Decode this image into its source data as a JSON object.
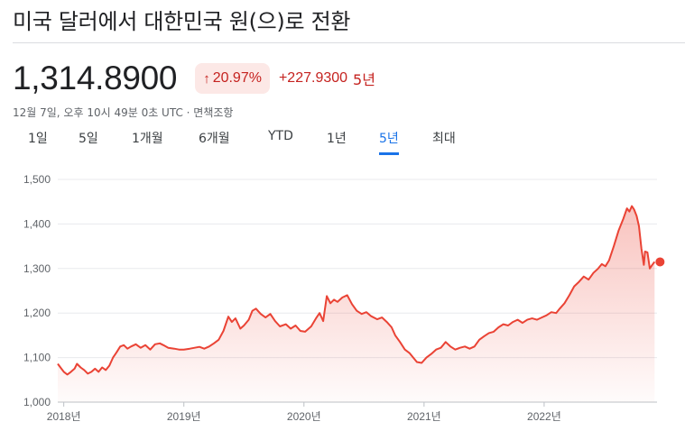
{
  "header": {
    "title": "미국 달러에서 대한민국 원(으)로 전환"
  },
  "quote": {
    "price": "1,314.8900",
    "percent_change": "20.97%",
    "arrow_glyph": "↑",
    "absolute_change": "+227.9300",
    "period_word": "5년",
    "timestamp": "12월 7일, 오후 10시 49분 0초 UTC · 면책조항",
    "change_color": "#c5221f",
    "badge_color": "#fce8e6"
  },
  "range_tabs": [
    {
      "label": "1일",
      "active": false
    },
    {
      "label": "5일",
      "active": false
    },
    {
      "label": "1개월",
      "active": false
    },
    {
      "label": "6개월",
      "active": false
    },
    {
      "label": "YTD",
      "active": false
    },
    {
      "label": "1년",
      "active": false
    },
    {
      "label": "5년",
      "active": true
    },
    {
      "label": "최대",
      "active": false
    }
  ],
  "chart_data": {
    "type": "area",
    "title": "",
    "xlabel": "",
    "ylabel": "",
    "ylim": [
      1000,
      1500
    ],
    "y_ticks": [
      1000,
      1100,
      1200,
      1300,
      1400,
      1500
    ],
    "y_tick_labels": [
      "1,000",
      "1,100",
      "1,200",
      "1,300",
      "1,400",
      "1,500"
    ],
    "xlim": [
      2017.95,
      2022.94
    ],
    "x_ticks": [
      2018,
      2019,
      2020,
      2021,
      2022
    ],
    "x_tick_labels": [
      "2018년",
      "2019년",
      "2020년",
      "2021년",
      "2022년"
    ],
    "line_color": "#ea4335",
    "grid": true,
    "series": [
      {
        "values": [
          [
            2017.95,
            1086
          ],
          [
            2017.98,
            1075
          ],
          [
            2018.0,
            1068
          ],
          [
            2018.03,
            1062
          ],
          [
            2018.06,
            1068
          ],
          [
            2018.09,
            1075
          ],
          [
            2018.11,
            1086
          ],
          [
            2018.14,
            1078
          ],
          [
            2018.17,
            1072
          ],
          [
            2018.2,
            1064
          ],
          [
            2018.23,
            1068
          ],
          [
            2018.26,
            1075
          ],
          [
            2018.29,
            1068
          ],
          [
            2018.32,
            1078
          ],
          [
            2018.35,
            1072
          ],
          [
            2018.38,
            1082
          ],
          [
            2018.41,
            1100
          ],
          [
            2018.44,
            1112
          ],
          [
            2018.47,
            1125
          ],
          [
            2018.5,
            1128
          ],
          [
            2018.53,
            1120
          ],
          [
            2018.56,
            1125
          ],
          [
            2018.6,
            1130
          ],
          [
            2018.64,
            1122
          ],
          [
            2018.68,
            1128
          ],
          [
            2018.72,
            1118
          ],
          [
            2018.76,
            1130
          ],
          [
            2018.8,
            1132
          ],
          [
            2018.83,
            1128
          ],
          [
            2018.87,
            1122
          ],
          [
            2018.92,
            1120
          ],
          [
            2018.96,
            1118
          ],
          [
            2019.0,
            1118
          ],
          [
            2019.05,
            1120
          ],
          [
            2019.09,
            1122
          ],
          [
            2019.13,
            1124
          ],
          [
            2019.17,
            1120
          ],
          [
            2019.21,
            1125
          ],
          [
            2019.25,
            1132
          ],
          [
            2019.29,
            1140
          ],
          [
            2019.33,
            1160
          ],
          [
            2019.37,
            1192
          ],
          [
            2019.4,
            1180
          ],
          [
            2019.43,
            1188
          ],
          [
            2019.47,
            1165
          ],
          [
            2019.5,
            1172
          ],
          [
            2019.54,
            1185
          ],
          [
            2019.57,
            1205
          ],
          [
            2019.6,
            1210
          ],
          [
            2019.64,
            1198
          ],
          [
            2019.68,
            1190
          ],
          [
            2019.72,
            1198
          ],
          [
            2019.76,
            1182
          ],
          [
            2019.8,
            1170
          ],
          [
            2019.85,
            1175
          ],
          [
            2019.89,
            1165
          ],
          [
            2019.93,
            1172
          ],
          [
            2019.97,
            1160
          ],
          [
            2020.01,
            1158
          ],
          [
            2020.06,
            1170
          ],
          [
            2020.1,
            1188
          ],
          [
            2020.13,
            1200
          ],
          [
            2020.16,
            1182
          ],
          [
            2020.19,
            1238
          ],
          [
            2020.22,
            1222
          ],
          [
            2020.25,
            1230
          ],
          [
            2020.28,
            1225
          ],
          [
            2020.32,
            1235
          ],
          [
            2020.36,
            1240
          ],
          [
            2020.4,
            1220
          ],
          [
            2020.44,
            1205
          ],
          [
            2020.48,
            1198
          ],
          [
            2020.52,
            1202
          ],
          [
            2020.56,
            1193
          ],
          [
            2020.61,
            1186
          ],
          [
            2020.65,
            1190
          ],
          [
            2020.69,
            1180
          ],
          [
            2020.73,
            1168
          ],
          [
            2020.76,
            1150
          ],
          [
            2020.8,
            1135
          ],
          [
            2020.84,
            1118
          ],
          [
            2020.88,
            1110
          ],
          [
            2020.91,
            1100
          ],
          [
            2020.94,
            1090
          ],
          [
            2020.98,
            1088
          ],
          [
            2021.02,
            1100
          ],
          [
            2021.06,
            1108
          ],
          [
            2021.1,
            1118
          ],
          [
            2021.14,
            1122
          ],
          [
            2021.18,
            1135
          ],
          [
            2021.22,
            1125
          ],
          [
            2021.26,
            1118
          ],
          [
            2021.3,
            1122
          ],
          [
            2021.34,
            1125
          ],
          [
            2021.38,
            1120
          ],
          [
            2021.42,
            1125
          ],
          [
            2021.46,
            1140
          ],
          [
            2021.5,
            1148
          ],
          [
            2021.54,
            1155
          ],
          [
            2021.58,
            1158
          ],
          [
            2021.62,
            1168
          ],
          [
            2021.66,
            1175
          ],
          [
            2021.7,
            1172
          ],
          [
            2021.74,
            1180
          ],
          [
            2021.78,
            1185
          ],
          [
            2021.82,
            1178
          ],
          [
            2021.86,
            1185
          ],
          [
            2021.9,
            1188
          ],
          [
            2021.94,
            1185
          ],
          [
            2021.98,
            1190
          ],
          [
            2022.02,
            1195
          ],
          [
            2022.06,
            1202
          ],
          [
            2022.1,
            1200
          ],
          [
            2022.13,
            1210
          ],
          [
            2022.17,
            1222
          ],
          [
            2022.21,
            1240
          ],
          [
            2022.25,
            1260
          ],
          [
            2022.29,
            1270
          ],
          [
            2022.33,
            1282
          ],
          [
            2022.37,
            1275
          ],
          [
            2022.41,
            1290
          ],
          [
            2022.45,
            1300
          ],
          [
            2022.48,
            1310
          ],
          [
            2022.51,
            1305
          ],
          [
            2022.54,
            1318
          ],
          [
            2022.58,
            1350
          ],
          [
            2022.62,
            1385
          ],
          [
            2022.66,
            1412
          ],
          [
            2022.69,
            1435
          ],
          [
            2022.71,
            1428
          ],
          [
            2022.73,
            1440
          ],
          [
            2022.75,
            1432
          ],
          [
            2022.77,
            1418
          ],
          [
            2022.79,
            1395
          ],
          [
            2022.81,
            1345
          ],
          [
            2022.83,
            1308
          ],
          [
            2022.84,
            1338
          ],
          [
            2022.86,
            1336
          ],
          [
            2022.88,
            1300
          ],
          [
            2022.9,
            1308
          ],
          [
            2022.92,
            1314.89
          ]
        ]
      }
    ]
  }
}
